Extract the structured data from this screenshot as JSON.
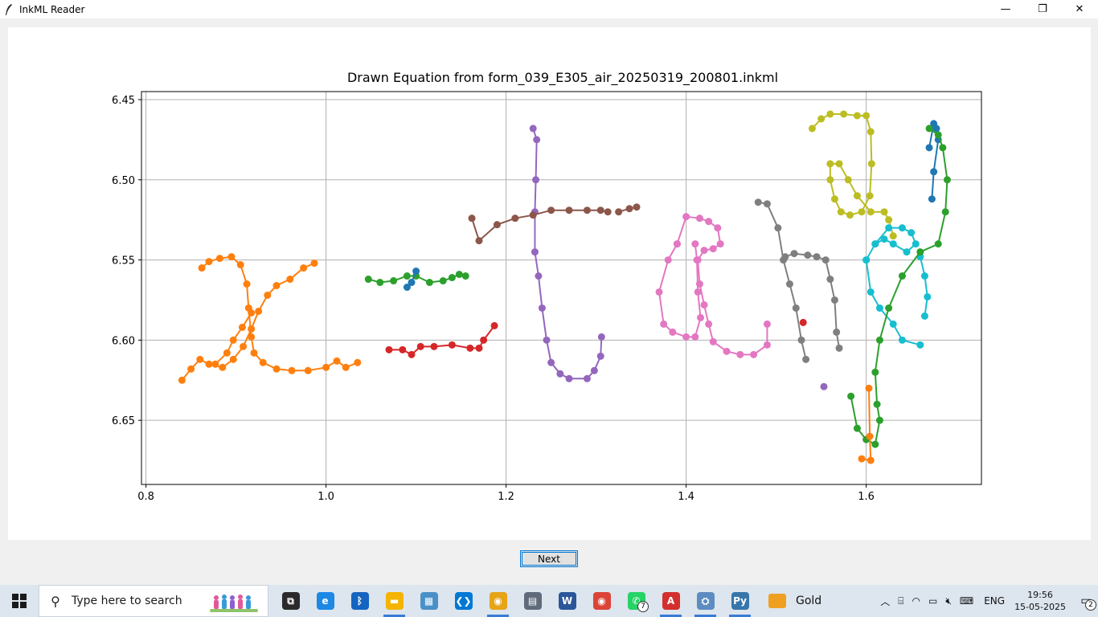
{
  "window": {
    "title": "InkML Reader",
    "minimize_glyph": "—",
    "maximize_glyph": "❐",
    "close_glyph": "✕"
  },
  "chart_data": {
    "type": "scatter",
    "title": "Drawn Equation from form_039_E305_air_20250319_200801.inkml",
    "xlabel": "",
    "ylabel": "",
    "xlim": [
      0.795,
      1.728
    ],
    "ylim": [
      6.69,
      6.445
    ],
    "y_inverted": true,
    "grid": true,
    "xticks": [
      "0.8",
      "1.0",
      "1.2",
      "1.4",
      "1.6"
    ],
    "xtick_values": [
      0.8,
      1.0,
      1.2,
      1.4,
      1.6
    ],
    "yticks": [
      "6.45",
      "6.50",
      "6.55",
      "6.60",
      "6.65"
    ],
    "ytick_values": [
      6.45,
      6.5,
      6.55,
      6.6,
      6.65
    ],
    "series": [
      {
        "color": "#ff7f0e",
        "points": [
          [
            0.987,
            6.552
          ],
          [
            0.975,
            6.555
          ],
          [
            0.96,
            6.562
          ],
          [
            0.945,
            6.566
          ],
          [
            0.935,
            6.572
          ],
          [
            0.925,
            6.582
          ],
          [
            0.917,
            6.593
          ],
          [
            0.908,
            6.604
          ],
          [
            0.897,
            6.612
          ],
          [
            0.885,
            6.617
          ],
          [
            0.87,
            6.615
          ],
          [
            0.86,
            6.612
          ],
          [
            0.85,
            6.618
          ],
          [
            0.84,
            6.625
          ]
        ]
      },
      {
        "color": "#ff7f0e",
        "points": [
          [
            0.862,
            6.555
          ],
          [
            0.87,
            6.551
          ],
          [
            0.882,
            6.549
          ],
          [
            0.895,
            6.548
          ],
          [
            0.905,
            6.553
          ],
          [
            0.912,
            6.565
          ],
          [
            0.914,
            6.58
          ],
          [
            0.917,
            6.598
          ],
          [
            0.92,
            6.608
          ],
          [
            0.93,
            6.614
          ],
          [
            0.945,
            6.618
          ],
          [
            0.962,
            6.619
          ],
          [
            0.98,
            6.619
          ],
          [
            1.0,
            6.617
          ],
          [
            1.012,
            6.613
          ],
          [
            1.022,
            6.617
          ],
          [
            1.035,
            6.614
          ]
        ]
      },
      {
        "color": "#ff7f0e",
        "points": [
          [
            0.917,
            6.583
          ],
          [
            0.907,
            6.592
          ],
          [
            0.897,
            6.6
          ],
          [
            0.89,
            6.608
          ],
          [
            0.877,
            6.615
          ]
        ]
      },
      {
        "color": "#2ca02c",
        "points": [
          [
            1.047,
            6.562
          ],
          [
            1.06,
            6.564
          ],
          [
            1.075,
            6.563
          ],
          [
            1.09,
            6.56
          ],
          [
            1.1,
            6.56
          ],
          [
            1.115,
            6.564
          ],
          [
            1.13,
            6.563
          ],
          [
            1.14,
            6.561
          ],
          [
            1.148,
            6.559
          ],
          [
            1.155,
            6.56
          ]
        ]
      },
      {
        "color": "#1f77b4",
        "points": [
          [
            1.09,
            6.567
          ],
          [
            1.095,
            6.564
          ],
          [
            1.1,
            6.557
          ]
        ]
      },
      {
        "color": "#d62728",
        "points": [
          [
            1.07,
            6.606
          ],
          [
            1.085,
            6.606
          ],
          [
            1.095,
            6.609
          ],
          [
            1.105,
            6.604
          ],
          [
            1.12,
            6.604
          ],
          [
            1.14,
            6.603
          ],
          [
            1.16,
            6.605
          ],
          [
            1.17,
            6.605
          ],
          [
            1.175,
            6.6
          ],
          [
            1.187,
            6.591
          ]
        ]
      },
      {
        "color": "#9467bd",
        "points": [
          [
            1.23,
            6.468
          ],
          [
            1.234,
            6.475
          ],
          [
            1.233,
            6.5
          ],
          [
            1.232,
            6.52
          ],
          [
            1.232,
            6.545
          ],
          [
            1.236,
            6.56
          ],
          [
            1.24,
            6.58
          ],
          [
            1.245,
            6.6
          ],
          [
            1.25,
            6.614
          ],
          [
            1.26,
            6.621
          ],
          [
            1.27,
            6.624
          ],
          [
            1.29,
            6.624
          ],
          [
            1.298,
            6.619
          ],
          [
            1.305,
            6.61
          ],
          [
            1.306,
            6.598
          ]
        ]
      },
      {
        "color": "#8c564b",
        "points": [
          [
            1.162,
            6.524
          ],
          [
            1.17,
            6.538
          ],
          [
            1.19,
            6.528
          ],
          [
            1.21,
            6.524
          ],
          [
            1.23,
            6.522
          ],
          [
            1.25,
            6.519
          ],
          [
            1.27,
            6.519
          ],
          [
            1.29,
            6.519
          ],
          [
            1.305,
            6.519
          ],
          [
            1.313,
            6.52
          ]
        ]
      },
      {
        "color": "#8c564b",
        "points": [
          [
            1.325,
            6.52
          ],
          [
            1.337,
            6.518
          ],
          [
            1.345,
            6.517
          ]
        ]
      },
      {
        "color": "#e377c2",
        "points": [
          [
            1.39,
            6.54
          ],
          [
            1.4,
            6.523
          ],
          [
            1.415,
            6.524
          ],
          [
            1.425,
            6.526
          ],
          [
            1.435,
            6.53
          ],
          [
            1.438,
            6.54
          ],
          [
            1.43,
            6.543
          ],
          [
            1.42,
            6.544
          ],
          [
            1.413,
            6.55
          ],
          [
            1.415,
            6.565
          ],
          [
            1.42,
            6.578
          ],
          [
            1.425,
            6.59
          ],
          [
            1.43,
            6.601
          ],
          [
            1.445,
            6.607
          ],
          [
            1.46,
            6.609
          ],
          [
            1.475,
            6.609
          ],
          [
            1.49,
            6.603
          ],
          [
            1.49,
            6.59
          ]
        ]
      },
      {
        "color": "#e377c2",
        "points": [
          [
            1.39,
            6.54
          ],
          [
            1.38,
            6.55
          ],
          [
            1.37,
            6.57
          ],
          [
            1.375,
            6.59
          ],
          [
            1.385,
            6.595
          ],
          [
            1.4,
            6.598
          ],
          [
            1.41,
            6.598
          ],
          [
            1.416,
            6.586
          ],
          [
            1.413,
            6.57
          ],
          [
            1.412,
            6.55
          ],
          [
            1.41,
            6.54
          ]
        ]
      },
      {
        "color": "#7f7f7f",
        "points": [
          [
            1.48,
            6.514
          ],
          [
            1.49,
            6.515
          ],
          [
            1.502,
            6.53
          ],
          [
            1.508,
            6.55
          ],
          [
            1.515,
            6.565
          ],
          [
            1.522,
            6.58
          ],
          [
            1.528,
            6.6
          ],
          [
            1.533,
            6.612
          ]
        ]
      },
      {
        "color": "#7f7f7f",
        "points": [
          [
            1.51,
            6.548
          ],
          [
            1.52,
            6.546
          ],
          [
            1.535,
            6.547
          ],
          [
            1.545,
            6.548
          ],
          [
            1.555,
            6.55
          ],
          [
            1.56,
            6.562
          ],
          [
            1.565,
            6.575
          ],
          [
            1.567,
            6.595
          ],
          [
            1.57,
            6.605
          ]
        ]
      },
      {
        "color": "#bcbd22",
        "points": [
          [
            1.54,
            6.468
          ],
          [
            1.55,
            6.462
          ],
          [
            1.56,
            6.459
          ],
          [
            1.575,
            6.459
          ],
          [
            1.59,
            6.46
          ],
          [
            1.6,
            6.46
          ],
          [
            1.605,
            6.47
          ],
          [
            1.606,
            6.49
          ],
          [
            1.604,
            6.51
          ],
          [
            1.595,
            6.52
          ],
          [
            1.582,
            6.522
          ],
          [
            1.572,
            6.52
          ],
          [
            1.565,
            6.512
          ],
          [
            1.56,
            6.5
          ],
          [
            1.56,
            6.49
          ],
          [
            1.57,
            6.49
          ],
          [
            1.58,
            6.5
          ],
          [
            1.59,
            6.51
          ],
          [
            1.605,
            6.52
          ],
          [
            1.62,
            6.52
          ],
          [
            1.625,
            6.525
          ],
          [
            1.63,
            6.535
          ]
        ]
      },
      {
        "color": "#17becf",
        "points": [
          [
            1.6,
            6.55
          ],
          [
            1.61,
            6.54
          ],
          [
            1.625,
            6.53
          ],
          [
            1.64,
            6.53
          ],
          [
            1.65,
            6.533
          ],
          [
            1.655,
            6.54
          ],
          [
            1.645,
            6.545
          ],
          [
            1.63,
            6.54
          ],
          [
            1.62,
            6.537
          ],
          [
            1.61,
            6.54
          ],
          [
            1.6,
            6.55
          ],
          [
            1.605,
            6.57
          ],
          [
            1.615,
            6.58
          ],
          [
            1.63,
            6.59
          ],
          [
            1.64,
            6.6
          ],
          [
            1.66,
            6.603
          ]
        ]
      },
      {
        "color": "#17becf",
        "points": [
          [
            1.66,
            6.548
          ],
          [
            1.665,
            6.56
          ],
          [
            1.668,
            6.573
          ],
          [
            1.665,
            6.585
          ]
        ]
      },
      {
        "color": "#1f77b4",
        "points": [
          [
            1.67,
            6.48
          ],
          [
            1.675,
            6.465
          ],
          [
            1.678,
            6.468
          ],
          [
            1.68,
            6.475
          ],
          [
            1.675,
            6.495
          ],
          [
            1.673,
            6.512
          ]
        ]
      },
      {
        "color": "#2ca02c",
        "points": [
          [
            1.67,
            6.468
          ],
          [
            1.68,
            6.472
          ],
          [
            1.685,
            6.48
          ],
          [
            1.69,
            6.5
          ],
          [
            1.688,
            6.52
          ],
          [
            1.68,
            6.54
          ],
          [
            1.66,
            6.545
          ],
          [
            1.64,
            6.56
          ],
          [
            1.625,
            6.58
          ],
          [
            1.615,
            6.6
          ],
          [
            1.61,
            6.62
          ],
          [
            1.612,
            6.64
          ],
          [
            1.615,
            6.65
          ],
          [
            1.61,
            6.665
          ],
          [
            1.6,
            6.662
          ],
          [
            1.59,
            6.655
          ],
          [
            1.583,
            6.635
          ]
        ]
      },
      {
        "color": "#ff7f0e",
        "points": [
          [
            1.603,
            6.63
          ],
          [
            1.604,
            6.66
          ],
          [
            1.605,
            6.675
          ],
          [
            1.595,
            6.674
          ]
        ]
      },
      {
        "color": "#d62728",
        "points": [
          [
            1.53,
            6.589
          ]
        ]
      },
      {
        "color": "#9467bd",
        "points": [
          [
            1.553,
            6.629
          ]
        ]
      }
    ]
  },
  "buttons": {
    "next_label": "Next"
  },
  "taskbar": {
    "search_placeholder": "Type here to search",
    "gold_label": "Gold",
    "whatsapp_badge": "7",
    "language": "ENG",
    "time": "19:56",
    "date": "15-05-2025",
    "notification_count": "2",
    "icons": [
      {
        "name": "task-view-icon",
        "glyph": "⧉",
        "color": "#2a2a2a",
        "running": false
      },
      {
        "name": "edge-icon",
        "glyph": "e",
        "color": "#1e88e5",
        "running": false
      },
      {
        "name": "bluetooth-icon",
        "glyph": "ᛒ",
        "color": "#1565c0",
        "running": false
      },
      {
        "name": "file-explorer-icon",
        "glyph": "▬",
        "color": "#f4b400",
        "running": true
      },
      {
        "name": "control-panel-icon",
        "glyph": "▦",
        "color": "#4a90c8",
        "running": false
      },
      {
        "name": "vscode-icon",
        "glyph": "❮❯",
        "color": "#0078d4",
        "running": false
      },
      {
        "name": "chrome-canary-icon",
        "glyph": "◉",
        "color": "#e6a417",
        "running": true
      },
      {
        "name": "calculator-icon",
        "glyph": "▤",
        "color": "#5f6b7a",
        "running": false
      },
      {
        "name": "word-icon",
        "glyph": "W",
        "color": "#2b579a",
        "running": false
      },
      {
        "name": "chrome-icon",
        "glyph": "◉",
        "color": "#db4437",
        "running": false
      },
      {
        "name": "whatsapp-icon",
        "glyph": "✆",
        "color": "#25d366",
        "running": false
      },
      {
        "name": "acrobat-icon",
        "glyph": "A",
        "color": "#d32f2f",
        "running": true
      },
      {
        "name": "network-app-icon",
        "glyph": "⛭",
        "color": "#5d8cc0",
        "running": true
      },
      {
        "name": "python-icon",
        "glyph": "Py",
        "color": "#3776ab",
        "running": true
      }
    ]
  }
}
